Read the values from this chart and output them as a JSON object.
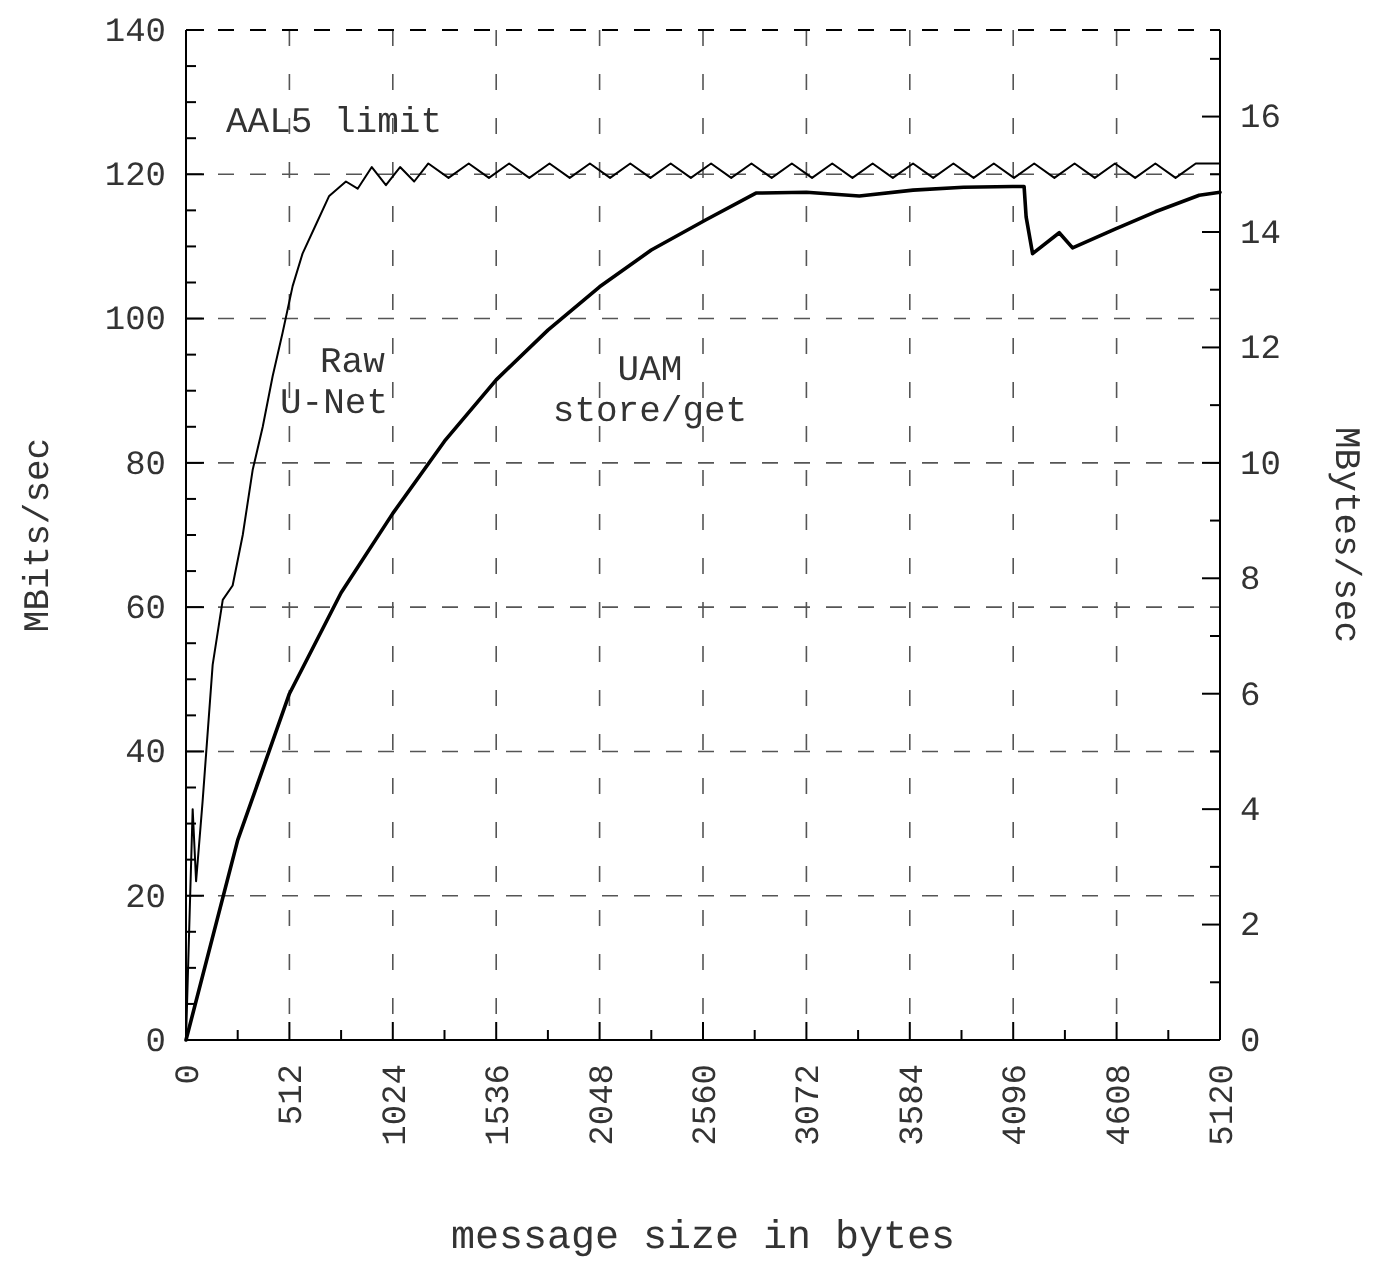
{
  "chart_data": {
    "type": "line",
    "xlabel": "message size in bytes",
    "ylabel": "MBits/sec",
    "y2label": "MBytes/sec",
    "xlim": [
      0,
      5120
    ],
    "xticks": [
      0,
      {
        "value": 256,
        "label": null
      },
      512,
      {
        "value": 768,
        "label": null
      },
      1024,
      {
        "value": 1280,
        "label": null
      },
      1536,
      {
        "value": 1792,
        "label": null
      },
      2048,
      {
        "value": 2304,
        "label": null
      },
      2560,
      {
        "value": 2816,
        "label": null
      },
      3072,
      {
        "value": 3328,
        "label": null
      },
      3584,
      {
        "value": 3840,
        "label": null
      },
      4096,
      {
        "value": 4352,
        "label": null
      },
      4608,
      {
        "value": 4864,
        "label": null
      },
      5120
    ],
    "ylim": [
      0,
      140
    ],
    "yticks": [
      0,
      {
        "value": 5,
        "label": null
      },
      20,
      {
        "value": 10,
        "label": null
      },
      {
        "value": 15,
        "label": null
      },
      {
        "value": 25,
        "label": null
      },
      {
        "value": 30,
        "label": null
      },
      {
        "value": 35,
        "label": null
      },
      40,
      {
        "value": 45,
        "label": null
      },
      {
        "value": 50,
        "label": null
      },
      {
        "value": 55,
        "label": null
      },
      60,
      {
        "value": 65,
        "label": null
      },
      {
        "value": 70,
        "label": null
      },
      {
        "value": 75,
        "label": null
      },
      80,
      {
        "value": 85,
        "label": null
      },
      {
        "value": 90,
        "label": null
      },
      {
        "value": 95,
        "label": null
      },
      100,
      {
        "value": 105,
        "label": null
      },
      {
        "value": 110,
        "label": null
      },
      {
        "value": 115,
        "label": null
      },
      120,
      {
        "value": 125,
        "label": null
      },
      {
        "value": 130,
        "label": null
      },
      {
        "value": 135,
        "label": null
      },
      140
    ],
    "y2lim": [
      0,
      17.5
    ],
    "y2ticks": [
      0,
      {
        "value": 1,
        "label": null
      },
      2,
      {
        "value": 3,
        "label": null
      },
      4,
      {
        "value": 5,
        "label": null
      },
      6,
      {
        "value": 7,
        "label": null
      },
      8,
      {
        "value": 9,
        "label": null
      },
      10,
      {
        "value": 11,
        "label": null
      },
      12,
      {
        "value": 13,
        "label": null
      },
      14,
      {
        "value": 15,
        "label": null
      },
      16,
      {
        "value": 17,
        "label": null
      }
    ],
    "grid": true,
    "line_style": "solid",
    "marker": "none",
    "annotations": [
      "AAL5 limit"
    ],
    "series": [
      {
        "name": "Raw U-Net",
        "color": "#000000",
        "x": [
          0,
          33,
          50,
          82,
          132,
          182,
          231,
          281,
          330,
          380,
          429,
          478,
          528,
          577,
          643,
          709,
          792,
          850,
          920,
          990,
          1060,
          1130,
          1200,
          1300,
          1400,
          1500,
          1600,
          1700,
          1800,
          1900,
          2000,
          2100,
          2200,
          2300,
          2400,
          2500,
          2600,
          2700,
          2800,
          2900,
          3000,
          3100,
          3200,
          3300,
          3400,
          3500,
          3600,
          3700,
          3800,
          3900,
          4000,
          4100,
          4200,
          4300,
          4400,
          4500,
          4600,
          4700,
          4800,
          4900,
          5000,
          5120
        ],
        "values": [
          0,
          32,
          22,
          33,
          52,
          61,
          63,
          70,
          79,
          85,
          92,
          98,
          104.5,
          109,
          113,
          117,
          119,
          118,
          121,
          118.5,
          121,
          119,
          121.5,
          119.5,
          121.5,
          119.5,
          121.5,
          119.5,
          121.5,
          119.5,
          121.5,
          119.5,
          121.5,
          119.5,
          121.5,
          119.5,
          121.5,
          119.5,
          121.5,
          119.5,
          121.5,
          119.5,
          121.5,
          119.5,
          121.5,
          119.5,
          121.5,
          119.5,
          121.5,
          119.5,
          121.5,
          119.5,
          121.5,
          119.5,
          121.5,
          119.5,
          121.5,
          119.5,
          121.5,
          119.5,
          121.5,
          121.5
        ]
      },
      {
        "name": "UAM store/get",
        "color": "#000000",
        "x": [
          0,
          256,
          512,
          768,
          1024,
          1280,
          1536,
          1792,
          2048,
          2304,
          2575,
          2822,
          3072,
          3334,
          3600,
          3850,
          4093,
          4150,
          4160,
          4192,
          4324,
          4390,
          4600,
          4800,
          5017,
          5120
        ],
        "values": [
          0,
          27.7,
          48,
          62,
          73,
          83,
          91.5,
          98.4,
          104.4,
          109.5,
          113.7,
          117.4,
          117.5,
          117,
          117.8,
          118.2,
          118.3,
          118.3,
          114.1,
          109,
          111.9,
          109.8,
          112.4,
          114.8,
          117.1,
          117.5
        ]
      }
    ]
  }
}
